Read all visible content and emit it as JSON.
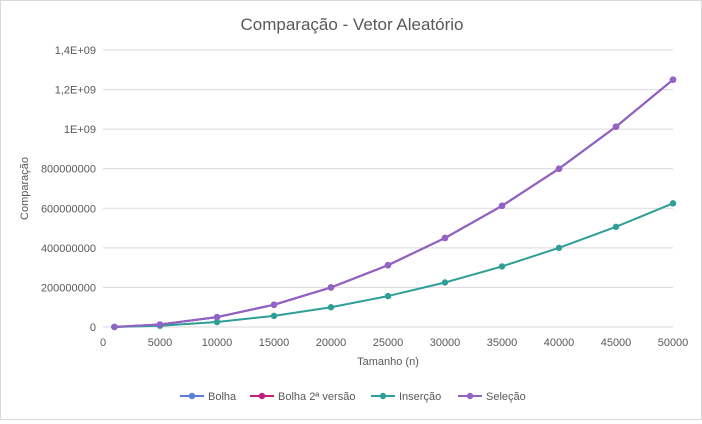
{
  "chart_data": {
    "type": "line",
    "title": "Comparação - Vetor Aleatório",
    "xlabel": "Tamanho (n)",
    "ylabel": "Comparação",
    "xlim": [
      0,
      50000
    ],
    "ylim": [
      0,
      1400000000
    ],
    "x_ticks": [
      0,
      5000,
      10000,
      15000,
      20000,
      25000,
      30000,
      35000,
      40000,
      45000,
      50000
    ],
    "x_tick_labels": [
      "0",
      "5000",
      "10000",
      "15000",
      "20000",
      "25000",
      "30000",
      "35000",
      "40000",
      "45000",
      "50000"
    ],
    "y_ticks": [
      0,
      200000000,
      400000000,
      600000000,
      800000000,
      1000000000,
      1200000000,
      1400000000
    ],
    "y_tick_labels": [
      "0",
      "200000000",
      "400000000",
      "600000000",
      "800000000",
      "1E+09",
      "1,2E+09",
      "1,4E+09"
    ],
    "grid": true,
    "legend_position": "bottom",
    "x": [
      1000,
      5000,
      10000,
      15000,
      20000,
      25000,
      30000,
      35000,
      40000,
      45000,
      50000
    ],
    "series": [
      {
        "name": "Bolha",
        "color": "#5b7fd6",
        "values": [
          499500,
          12497500,
          49995000,
          112492500,
          199990000,
          312487500,
          449985000,
          612482500,
          799980000,
          1012477500,
          1249975000
        ]
      },
      {
        "name": "Bolha 2ª versão",
        "color": "#c0217a",
        "values": [
          499000,
          12490000,
          49980000,
          112470000,
          199960000,
          312450000,
          449940000,
          612430000,
          799920000,
          1012410000,
          1249900000
        ]
      },
      {
        "name": "Inserção",
        "color": "#2e9e96",
        "values": [
          250000,
          6250000,
          25000000,
          56250000,
          100000000,
          156250000,
          225000000,
          306250000,
          400000000,
          506250000,
          625000000
        ]
      },
      {
        "name": "Seleção",
        "color": "#9063c4",
        "values": [
          499500,
          12497500,
          49995000,
          112492500,
          199990000,
          312487500,
          449985000,
          612482500,
          799980000,
          1012477500,
          1249975000
        ]
      }
    ]
  }
}
